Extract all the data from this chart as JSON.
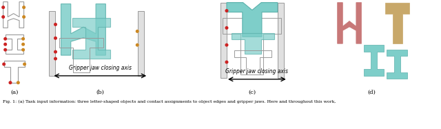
{
  "figure_width": 6.4,
  "figure_height": 1.87,
  "dpi": 100,
  "bg_color": "#ffffff",
  "teal": "#7ecec9",
  "teal_edge": "#5ab0ab",
  "gray_edge": "#999999",
  "red_dot": "#cc2222",
  "orange_dot": "#cc8822",
  "pink": "#c87878",
  "tan": "#c8a86a",
  "gripper_fill": "#e0e0e0",
  "caption": "Fig. 1: (a) Task input information: three letter-shaped objects and contact assignments to object edges and gripper jaws. Here and throughout this work,",
  "arrow_text_b": "Gripper jaw closing axis",
  "arrow_text_c": "Gripper jaw closing axis",
  "sub_a": "(a)",
  "sub_b": "(b)",
  "sub_c": "(c)",
  "sub_d": "(d)"
}
